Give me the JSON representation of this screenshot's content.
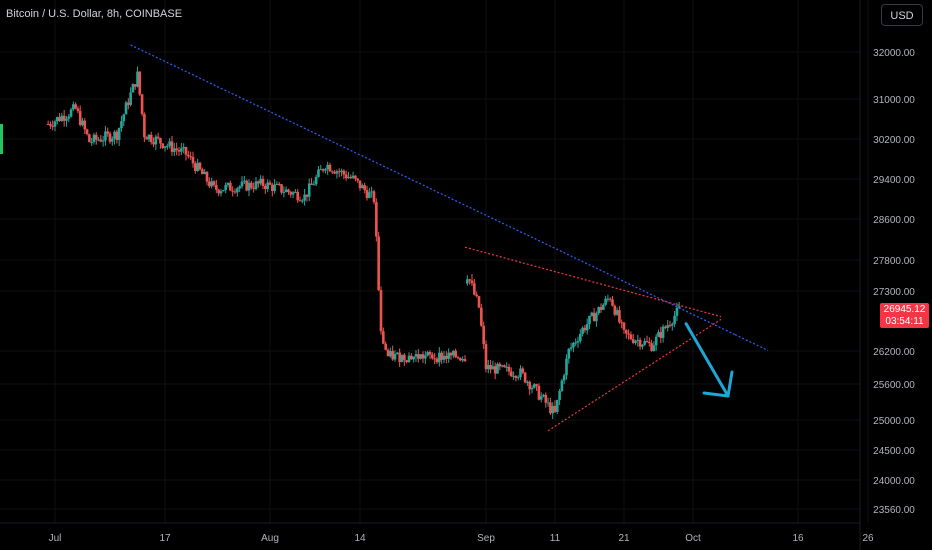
{
  "header": {
    "title": "Bitcoin / U.S. Dollar, 8h, COINBASE",
    "currency_button": "USD"
  },
  "price_tag": {
    "price": "26945.12",
    "countdown": "03:54:11"
  },
  "colors": {
    "background": "#000000",
    "up": "#26a69a",
    "up_bright": "#22c55e",
    "down": "#ef5350",
    "price_tag": "#f23645",
    "trend_blue": "#2962ff",
    "trend_red": "#f23645",
    "arrow": "#1ea7d6"
  },
  "chart_data": {
    "type": "candlestick",
    "title": "Bitcoin / U.S. Dollar, 8h, COINBASE",
    "y_ticks": [
      "32000.00",
      "31000.00",
      "30200.00",
      "29400.00",
      "28600.00",
      "27800.00",
      "27300.00",
      "26200.00",
      "25600.00",
      "25000.00",
      "24500.00",
      "24000.00",
      "23560.00"
    ],
    "x_ticks": [
      "Jul",
      "17",
      "Aug",
      "14",
      "Sep",
      "11",
      "21",
      "Oct",
      "16",
      "26"
    ],
    "x_range": [
      "2023-06-30",
      "2023-10-28"
    ],
    "y_scale": "log",
    "last_price": 26945.12,
    "price_path": [
      [
        "2023-06-30",
        30500
      ],
      [
        "2023-07-04",
        30800
      ],
      [
        "2023-07-06",
        30150
      ],
      [
        "2023-07-10",
        30300
      ],
      [
        "2023-07-13",
        31500
      ],
      [
        "2023-07-14",
        30300
      ],
      [
        "2023-07-20",
        29900
      ],
      [
        "2023-07-24",
        29200
      ],
      [
        "2023-07-31",
        29300
      ],
      [
        "2023-08-06",
        29050
      ],
      [
        "2023-08-09",
        29700
      ],
      [
        "2023-08-13",
        29400
      ],
      [
        "2023-08-16",
        29000
      ],
      [
        "2023-08-17",
        26500
      ],
      [
        "2023-08-18",
        26100
      ],
      [
        "2023-08-24",
        26100
      ],
      [
        "2023-08-29",
        26100
      ],
      [
        "2023-08-29",
        27700
      ],
      [
        "2023-08-31",
        27000
      ],
      [
        "2023-09-01",
        25900
      ],
      [
        "2023-09-06",
        25800
      ],
      [
        "2023-09-11",
        25100
      ],
      [
        "2023-09-13",
        26200
      ],
      [
        "2023-09-15",
        26600
      ],
      [
        "2023-09-19",
        27200
      ],
      [
        "2023-09-21",
        26500
      ],
      [
        "2023-09-25",
        26300
      ],
      [
        "2023-09-28",
        26800
      ],
      [
        "2023-09-29",
        26950
      ]
    ],
    "trendlines": [
      {
        "name": "descending resistance",
        "style": "dotted",
        "color": "#2962ff",
        "from": [
          "2023-07-12",
          32150
        ],
        "to": [
          "2023-10-07",
          26500
        ]
      },
      {
        "name": "triangle upper",
        "style": "dotted",
        "color": "#f23645",
        "from": [
          "2023-08-29",
          28050
        ],
        "to": [
          "2023-10-05",
          26830
        ]
      },
      {
        "name": "triangle lower",
        "style": "dotted",
        "color": "#f23645",
        "from": [
          "2023-09-10",
          24820
        ],
        "to": [
          "2023-10-05",
          26780
        ]
      }
    ],
    "annotations": [
      {
        "type": "arrow",
        "direction": "down-right",
        "color": "#1ea7d6",
        "from": [
          "2023-09-30",
          26700
        ],
        "to": [
          "2023-10-06",
          25400
        ]
      }
    ]
  }
}
